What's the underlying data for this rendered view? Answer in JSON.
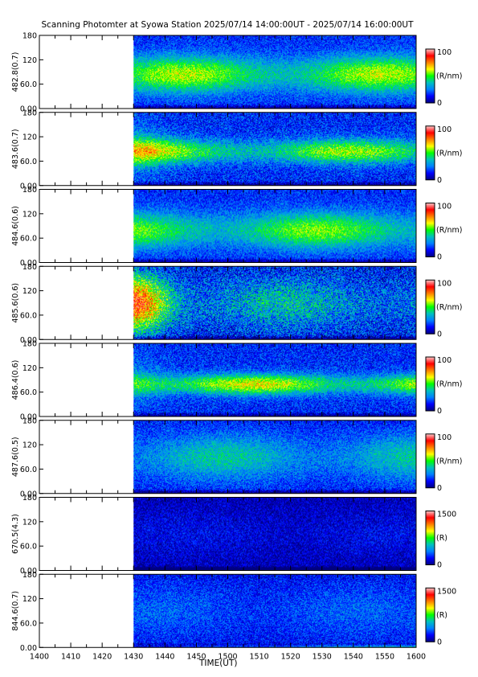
{
  "title": "Scanning Photomter at Syowa Station 2025/07/14 14:00:00UT - 2025/07/14 16:00:00UT",
  "chart_data": {
    "type": "heatmap",
    "xlabel": "TIME(UT)",
    "x_ticks": [
      "1400",
      "1410",
      "1420",
      "1430",
      "1440",
      "1450",
      "1500",
      "1510",
      "1520",
      "1530",
      "1540",
      "1550",
      "1600"
    ],
    "x_range": [
      "14:00",
      "16:00"
    ],
    "data_start": "14:30",
    "y_ticks": [
      "0.00",
      "60.0",
      "120",
      "180"
    ],
    "y_range": [
      0,
      180
    ],
    "colormap": [
      "#000080",
      "#0000ff",
      "#0080ff",
      "#00c0c0",
      "#00ff00",
      "#ffff00",
      "#ff8000",
      "#ff0000",
      "#ffc8c8"
    ],
    "panels": [
      {
        "label": "482.8(0.7)",
        "cmax_label": "100",
        "cmin_label": "0",
        "unit": "(R/nm)",
        "band_center": 85,
        "band_width": 45,
        "intensity": 0.38,
        "burst": 0,
        "bottom_glow": 0,
        "dark": 0
      },
      {
        "label": "483.6(0.7)",
        "cmax_label": "100",
        "cmin_label": "0",
        "unit": "(R/nm)",
        "band_center": 85,
        "band_width": 30,
        "intensity": 0.36,
        "burst": 0.15,
        "bottom_glow": 0,
        "dark": 0
      },
      {
        "label": "484.6(0.6)",
        "cmax_label": "100",
        "cmin_label": "0",
        "unit": "(R/nm)",
        "band_center": 80,
        "band_width": 45,
        "intensity": 0.34,
        "burst": 0,
        "bottom_glow": 0,
        "dark": 0
      },
      {
        "label": "485.6(0.6)",
        "cmax_label": "100",
        "cmin_label": "0",
        "unit": "(R/nm)",
        "band_center": 90,
        "band_width": 70,
        "intensity": 0.22,
        "burst": 0.55,
        "bottom_glow": 0,
        "dark": 0.1
      },
      {
        "label": "486.4(0.6)",
        "cmax_label": "100",
        "cmin_label": "0",
        "unit": "(R/nm)",
        "band_center": 80,
        "band_width": 25,
        "intensity": 0.42,
        "burst": 0.1,
        "bottom_glow": 0,
        "dark": 0
      },
      {
        "label": "487.6(0.5)",
        "cmax_label": "100",
        "cmin_label": "0",
        "unit": "(R/nm)",
        "band_center": 90,
        "band_width": 60,
        "intensity": 0.22,
        "burst": 0,
        "bottom_glow": 0,
        "dark": 0.05
      },
      {
        "label": "670.5(4.3)",
        "cmax_label": "1500",
        "cmin_label": "0",
        "unit": "(R)",
        "band_center": 90,
        "band_width": 60,
        "intensity": 0.06,
        "burst": 0,
        "bottom_glow": 0,
        "dark": 0.25
      },
      {
        "label": "844.6(0.7)",
        "cmax_label": "1500",
        "cmin_label": "0",
        "unit": "(R)",
        "band_center": 90,
        "band_width": 70,
        "intensity": 0.1,
        "burst": 0,
        "bottom_glow": 0.55,
        "dark": 0.1
      }
    ]
  }
}
